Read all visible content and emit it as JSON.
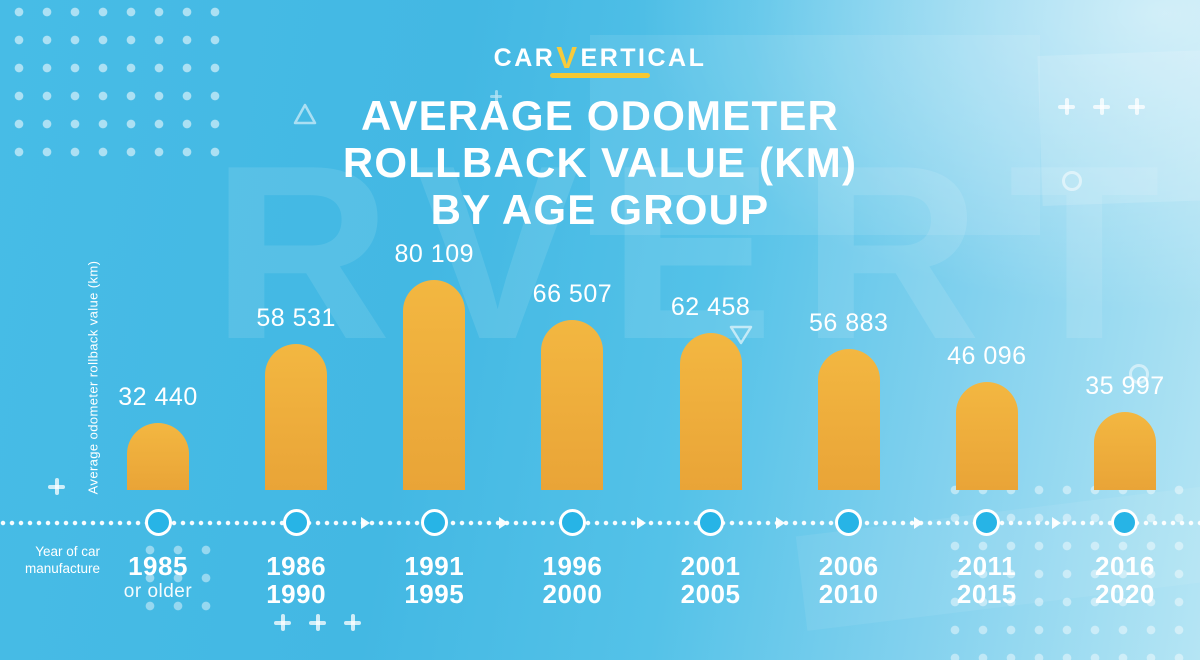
{
  "header": {
    "logo": {
      "car": "CAR",
      "v": "V",
      "ertical": "ERTICAL",
      "underline_color": "#F5C832"
    },
    "title_lines": [
      "AVERAGE ODOMETER",
      "ROLLBACK VALUE (KM)",
      "BY AGE GROUP"
    ]
  },
  "axes": {
    "y_label": "Average odometer rollback value (km)",
    "x_label": "Year of car manufacture"
  },
  "watermark": "RVERT",
  "chart_data": {
    "type": "bar",
    "title": "Average odometer rollback value (km) by age group",
    "xlabel": "Year of car manufacture",
    "ylabel": "Average odometer rollback value (km)",
    "categories": [
      "1985 or older",
      "1986–1990",
      "1991–1995",
      "1996–2000",
      "2001–2005",
      "2006–2010",
      "2011–2015",
      "2016–2020"
    ],
    "category_lines": [
      {
        "top": "1985",
        "bottom": "or older",
        "small_bottom": true
      },
      {
        "top": "1986",
        "bottom": "1990"
      },
      {
        "top": "1991",
        "bottom": "1995"
      },
      {
        "top": "1996",
        "bottom": "2000"
      },
      {
        "top": "2001",
        "bottom": "2005"
      },
      {
        "top": "2006",
        "bottom": "2010"
      },
      {
        "top": "2011",
        "bottom": "2015"
      },
      {
        "top": "2016",
        "bottom": "2020"
      }
    ],
    "values": [
      32440,
      58531,
      80109,
      66507,
      62458,
      56883,
      46096,
      35997
    ],
    "value_labels": [
      "32 440",
      "58 531",
      "80 109",
      "66 507",
      "62 458",
      "56 883",
      "46 096",
      "35 997"
    ],
    "bar_color": "#EBA83B",
    "timeline_dot_fill": "#27B4E6",
    "grid": false,
    "legend": "none"
  },
  "colors": {
    "background_cyan": "#45BBE5",
    "background_light": "#B5E5F4",
    "accent_yellow": "#F5C832",
    "text": "#FFFFFF"
  },
  "icons": {
    "decor": [
      "dot-grid",
      "plus-icon",
      "triangle-up-icon",
      "triangle-down-icon",
      "circle-outline-icon",
      "arrow-right-icon",
      "timeline-dot"
    ]
  }
}
